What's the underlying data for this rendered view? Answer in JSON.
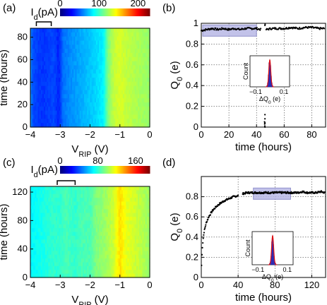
{
  "chart_data": [
    {
      "panel": "(a)",
      "type": "heatmap",
      "colorbar": {
        "label": "I",
        "label_sub": "d",
        "label_unit": "(pA)",
        "ticks": [
          0,
          100,
          200
        ],
        "range": [
          0,
          230
        ]
      },
      "xlabel": "V",
      "xlabel_sub": "RIP",
      "xlabel_unit": " (V)",
      "ylabel": "time (hours)",
      "xlim": [
        -4,
        0
      ],
      "ylim": [
        0,
        88
      ],
      "xticks": [
        -4,
        -3,
        -2,
        -1,
        0
      ],
      "yticks": [
        0,
        20,
        40,
        60,
        80
      ],
      "current_profile": {
        "v": [
          -4,
          -3.9,
          -3.6,
          -3.2,
          -3.05,
          -2.9,
          -2.6,
          -2.4,
          -2.2,
          -1.9,
          -1.7,
          -1.55,
          -1.4,
          -1.2,
          -1.0,
          -0.8,
          -0.4,
          0
        ],
        "i": [
          60,
          45,
          40,
          45,
          35,
          55,
          62,
          65,
          70,
          75,
          80,
          85,
          115,
          130,
          135,
          130,
          125,
          120
        ]
      },
      "bracket_v": [
        -3.8,
        -3.3
      ]
    },
    {
      "panel": "(b)",
      "type": "scatter",
      "xlabel": "time (hours)",
      "ylabel": "Q",
      "ylabel_sub": "0",
      "ylabel_unit": " (e)",
      "xlim": [
        0,
        90
      ],
      "ylim": [
        0,
        1
      ],
      "xticks": [
        0,
        20,
        40,
        60,
        80
      ],
      "yticks": [
        0,
        0.2,
        0.4,
        0.6,
        0.8,
        1
      ],
      "series": [
        {
          "segment": "before_jump",
          "t": [
            0,
            4,
            8,
            12,
            16,
            20,
            24,
            28,
            32,
            36,
            40,
            43
          ],
          "q": [
            0.93,
            0.94,
            0.95,
            0.94,
            0.95,
            0.94,
            0.95,
            0.94,
            0.95,
            0.95,
            0.95,
            0.94
          ]
        },
        {
          "segment": "after_jump",
          "t": [
            47,
            51,
            55,
            60,
            65,
            70,
            75,
            80,
            85,
            89
          ],
          "q": [
            0.94,
            0.95,
            0.95,
            0.95,
            0.96,
            0.95,
            0.96,
            0.96,
            0.95,
            0.95
          ]
        },
        {
          "segment": "jump",
          "t": [
            45.8,
            45.9,
            46,
            46.1,
            46.2
          ],
          "q": [
            0.05,
            0.03,
            0.01,
            0.98,
            0.99
          ]
        }
      ],
      "highlight_t": [
        0,
        40
      ],
      "inset": {
        "ylabel": "Count",
        "xlabel": "ΔQ",
        "xlabel_sub": "0",
        "xlabel_unit": " (e)",
        "xticks": [
          -0.1,
          0.1
        ],
        "xlim": [
          -0.14,
          0.14
        ],
        "hist_bins": [
          -0.02,
          -0.015,
          -0.01,
          -0.005,
          0,
          0.005,
          0.01,
          0.015,
          0.02
        ],
        "hist_counts": [
          0.05,
          0.15,
          0.45,
          0.9,
          1.0,
          0.8,
          0.4,
          0.15,
          0.05
        ]
      }
    },
    {
      "panel": "(c)",
      "type": "heatmap",
      "colorbar": {
        "label": "I",
        "label_sub": "d",
        "label_unit": "(pA)",
        "ticks": [
          0,
          80,
          160
        ],
        "range": [
          0,
          190
        ]
      },
      "xlabel": "V",
      "xlabel_sub": "RIP",
      "xlabel_unit": " (V)",
      "ylabel": "time (hours)",
      "xlim": [
        -4,
        0
      ],
      "ylim": [
        0,
        128
      ],
      "xticks": [
        -4,
        -3,
        -2,
        -1,
        0
      ],
      "yticks": [
        0,
        40,
        80,
        120
      ],
      "current_profile": {
        "v": [
          -4,
          -3.6,
          -3.3,
          -3.0,
          -2.8,
          -2.5,
          -2.3,
          -2.0,
          -1.8,
          -1.5,
          -1.2,
          -1.0,
          -0.8,
          -0.5,
          0
        ],
        "i": [
          70,
          75,
          80,
          80,
          85,
          80,
          85,
          85,
          95,
          100,
          110,
          125,
          115,
          110,
          100
        ]
      },
      "bracket_v": [
        -3.1,
        -2.5
      ]
    },
    {
      "panel": "(d)",
      "type": "scatter",
      "xlabel": "time (hours)",
      "ylabel": "Q",
      "ylabel_sub": "0",
      "ylabel_unit": " (e)",
      "xlim": [
        0,
        135
      ],
      "ylim": [
        0,
        1
      ],
      "xticks": [
        0,
        40,
        80,
        120
      ],
      "yticks": [
        0,
        0.2,
        0.4,
        0.6,
        0.8
      ],
      "series": [
        {
          "segment": "relaxation",
          "t": [
            0.3,
            1,
            2,
            3,
            5,
            8,
            12,
            16,
            20,
            25,
            30,
            35,
            40
          ],
          "q": [
            0.12,
            0.28,
            0.38,
            0.45,
            0.53,
            0.6,
            0.66,
            0.7,
            0.73,
            0.76,
            0.78,
            0.8,
            0.81
          ]
        },
        {
          "segment": "stable",
          "t": [
            45,
            50,
            55,
            60,
            65,
            70,
            75,
            80,
            85,
            90,
            95,
            100,
            105,
            110,
            115,
            120,
            125,
            130,
            134
          ],
          "q": [
            0.83,
            0.84,
            0.84,
            0.84,
            0.84,
            0.84,
            0.84,
            0.84,
            0.84,
            0.84,
            0.84,
            0.84,
            0.84,
            0.85,
            0.84,
            0.84,
            0.84,
            0.85,
            0.84
          ]
        }
      ],
      "highlight_t": [
        55,
        97
      ],
      "inset": {
        "ylabel": "Count",
        "xlabel": "ΔQ",
        "xlabel_sub": "0",
        "xlabel_unit": " (e)",
        "xticks": [
          -0.1,
          0.1
        ],
        "xlim": [
          -0.14,
          0.14
        ],
        "hist_bins": [
          -0.02,
          -0.015,
          -0.01,
          -0.005,
          0,
          0.005,
          0.01,
          0.015,
          0.02
        ],
        "hist_counts": [
          0.05,
          0.1,
          0.3,
          0.8,
          1.0,
          0.7,
          0.3,
          0.1,
          0.05
        ]
      }
    }
  ]
}
